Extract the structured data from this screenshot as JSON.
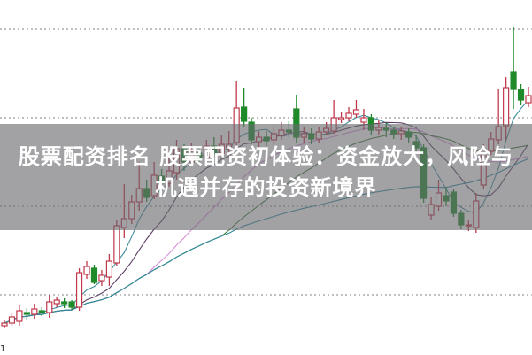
{
  "title": "股票配资排名 股票配资初体验：资金放大，风险与机遇并存的投资新境界",
  "corner_label": "1",
  "chart_data": {
    "type": "candlestick",
    "title": "",
    "xlabel": "",
    "ylabel": "",
    "ylim": [
      3.2,
      43.3
    ],
    "grid": true,
    "gridlines": [
      10,
      20,
      30,
      40
    ],
    "colors": {
      "up": "#c0394b",
      "down": "#1f8a2a",
      "grid": "#9a9a9a"
    },
    "moving_averages": [
      {
        "period": 5,
        "color": "#3f8f9c"
      },
      {
        "period": 10,
        "color": "#5b3f63"
      },
      {
        "period": 20,
        "color": "#d78fd8"
      },
      {
        "period": 30,
        "color": "#3d7d3a"
      },
      {
        "period": 60,
        "color": "#2f8aa0"
      }
    ],
    "candles": [
      [
        6.5,
        7.2,
        6.2,
        6.8
      ],
      [
        6.8,
        8.0,
        6.5,
        7.5
      ],
      [
        7.0,
        8.8,
        6.5,
        8.2
      ],
      [
        8.0,
        8.5,
        7.2,
        7.8
      ],
      [
        7.8,
        9.0,
        7.3,
        8.4
      ],
      [
        8.2,
        8.6,
        7.6,
        8.0
      ],
      [
        8.0,
        10.0,
        7.4,
        9.2
      ],
      [
        9.0,
        9.8,
        8.6,
        9.4
      ],
      [
        9.2,
        9.6,
        8.5,
        9.0
      ],
      [
        9.2,
        9.4,
        8.3,
        8.6
      ],
      [
        8.6,
        13.0,
        8.2,
        12.5
      ],
      [
        12.3,
        13.8,
        11.8,
        13.2
      ],
      [
        13.0,
        13.4,
        11.2,
        11.4
      ],
      [
        11.6,
        12.8,
        11.0,
        12.2
      ],
      [
        12.0,
        14.6,
        11.0,
        13.8
      ],
      [
        13.6,
        18.5,
        13.2,
        17.8
      ],
      [
        17.6,
        22.5,
        16.4,
        18.6
      ],
      [
        18.6,
        21.3,
        18.0,
        20.5
      ],
      [
        20.5,
        25.0,
        19.5,
        22.0
      ],
      [
        22.0,
        23.0,
        20.5,
        21.0
      ],
      [
        21.2,
        25.0,
        20.8,
        23.5
      ],
      [
        23.4,
        24.2,
        22.0,
        22.6
      ],
      [
        22.6,
        25.5,
        22.2,
        24.0
      ],
      [
        23.8,
        27.5,
        23.0,
        26.5
      ],
      [
        26.5,
        27.0,
        24.0,
        25.0
      ],
      [
        25.0,
        27.2,
        24.6,
        26.2
      ],
      [
        26.0,
        26.8,
        24.8,
        25.4
      ],
      [
        25.5,
        27.5,
        25.0,
        26.8
      ],
      [
        26.8,
        27.8,
        25.5,
        26.0
      ],
      [
        26.0,
        28.0,
        25.4,
        27.0
      ],
      [
        26.6,
        28.5,
        26.0,
        27.0
      ],
      [
        27.2,
        34.1,
        26.5,
        31.1
      ],
      [
        31.2,
        33.4,
        29.0,
        29.6
      ],
      [
        29.5,
        30.0,
        27.0,
        27.5
      ],
      [
        27.3,
        28.5,
        26.5,
        27.8
      ],
      [
        27.8,
        28.5,
        26.8,
        27.4
      ],
      [
        27.5,
        29.0,
        27.0,
        28.2
      ],
      [
        28.0,
        29.5,
        27.5,
        28.6
      ],
      [
        28.6,
        29.6,
        27.8,
        28.4
      ],
      [
        31.0,
        32.6,
        27.2,
        27.8
      ],
      [
        27.8,
        29.0,
        27.2,
        28.2
      ],
      [
        28.2,
        28.8,
        27.0,
        27.6
      ],
      [
        27.6,
        29.0,
        27.2,
        28.4
      ],
      [
        28.4,
        29.5,
        28.0,
        28.8
      ],
      [
        28.5,
        32.0,
        28.2,
        30.0
      ],
      [
        29.8,
        30.6,
        29.4,
        30.0
      ],
      [
        30.0,
        31.2,
        29.6,
        30.5
      ],
      [
        30.4,
        32.0,
        30.0,
        30.9
      ],
      [
        29.5,
        31.0,
        28.6,
        30.0
      ],
      [
        30.0,
        30.4,
        28.0,
        28.6
      ],
      [
        28.6,
        29.8,
        28.0,
        28.9
      ],
      [
        28.8,
        29.4,
        27.8,
        28.6
      ],
      [
        28.6,
        29.0,
        27.6,
        28.2
      ],
      [
        28.2,
        29.0,
        27.5,
        28.5
      ],
      [
        28.4,
        28.8,
        27.2,
        27.8
      ],
      [
        27.3,
        28.0,
        26.0,
        26.6
      ],
      [
        26.6,
        27.0,
        20.4,
        20.9
      ],
      [
        19.0,
        21.0,
        18.5,
        20.2
      ],
      [
        20.0,
        23.0,
        19.5,
        21.5
      ],
      [
        21.2,
        22.2,
        20.0,
        20.6
      ],
      [
        21.6,
        22.0,
        18.8,
        19.2
      ],
      [
        19.2,
        19.6,
        17.4,
        17.9
      ],
      [
        17.8,
        18.5,
        17.2,
        17.9
      ],
      [
        17.6,
        21.5,
        17.0,
        20.6
      ],
      [
        22.4,
        27.0,
        22.0,
        26.4
      ],
      [
        26.2,
        28.4,
        25.8,
        27.6
      ],
      [
        27.5,
        33.2,
        27.0,
        29.0
      ],
      [
        29.1,
        34.6,
        27.5,
        33.4
      ],
      [
        35.2,
        40.3,
        31.0,
        33.2
      ],
      [
        33.2,
        33.8,
        31.4,
        32.0
      ],
      [
        31.7,
        33.5,
        31.2,
        32.5
      ]
    ]
  }
}
